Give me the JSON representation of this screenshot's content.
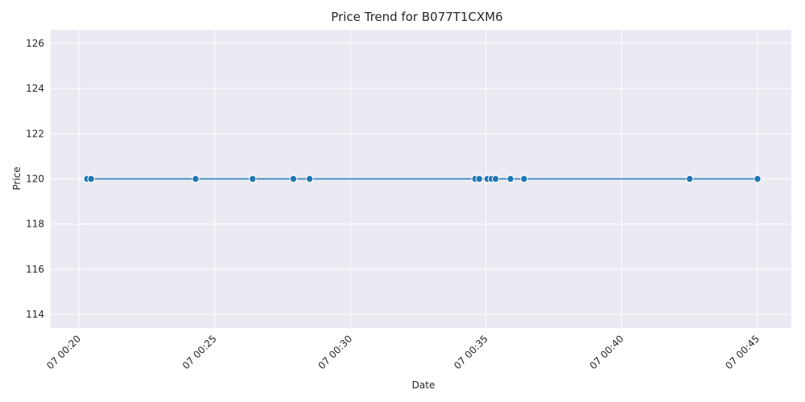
{
  "chart_data": {
    "type": "line",
    "title": "Price Trend for B077T1CXM6",
    "xlabel": "Date",
    "ylabel": "Price",
    "x_ticks": [
      "07 00:20",
      "07 00:25",
      "07 00:30",
      "07 00:35",
      "07 00:40",
      "07 00:45"
    ],
    "y_ticks": [
      114,
      116,
      118,
      120,
      122,
      124,
      126
    ],
    "xlim": [
      "07 00:20",
      "07 00:45"
    ],
    "ylim": [
      113.4,
      126.6
    ],
    "grid": true,
    "series": [
      {
        "x": [
          "07 00:20:18",
          "07 00:20:27",
          "07 00:24:18",
          "07 00:26:24",
          "07 00:27:54",
          "07 00:28:30",
          "07 00:34:36",
          "07 00:34:45",
          "07 00:35:03",
          "07 00:35:12",
          "07 00:35:21",
          "07 00:35:54",
          "07 00:36:24",
          "07 00:42:30",
          "07 00:45:00"
        ],
        "y": [
          120,
          120,
          120,
          120,
          120,
          120,
          120,
          120,
          120,
          120,
          120,
          120,
          120,
          120,
          120
        ],
        "color": "#1f77b4"
      }
    ]
  },
  "colors": {
    "plot_background": "#eaeaf2",
    "grid": "#ffffff",
    "line": "#1f77b4"
  }
}
